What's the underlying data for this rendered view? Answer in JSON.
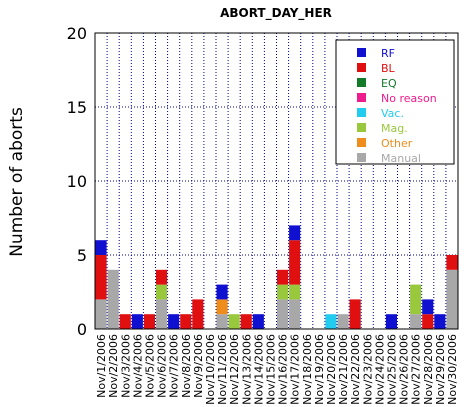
{
  "chart_data": {
    "type": "bar",
    "stacked": true,
    "title": "ABORT_DAY_HER",
    "xlabel": "",
    "ylabel": "Number of aborts",
    "ylim": [
      0,
      20
    ],
    "yticks": [
      "0",
      "5",
      "10",
      "15",
      "20"
    ],
    "grid": true,
    "legend_position": "top-right",
    "categories": [
      "Nov/1/2006",
      "Nov/2/2006",
      "Nov/3/2006",
      "Nov/4/2006",
      "Nov/5/2006",
      "Nov/6/2006",
      "Nov/7/2006",
      "Nov/8/2006",
      "Nov/9/2006",
      "Nov/10/2006",
      "Nov/11/2006",
      "Nov/12/2006",
      "Nov/13/2006",
      "Nov/14/2006",
      "Nov/15/2006",
      "Nov/16/2006",
      "Nov/17/2006",
      "Nov/18/2006",
      "Nov/19/2006",
      "Nov/20/2006",
      "Nov/21/2006",
      "Nov/22/2006",
      "Nov/23/2006",
      "Nov/24/2006",
      "Nov/25/2006",
      "Nov/26/2006",
      "Nov/27/2006",
      "Nov/28/2006",
      "Nov/29/2006",
      "Nov/30/2006"
    ],
    "series": [
      {
        "name": "Manual",
        "color": "#a8a8a8",
        "values": [
          2,
          4,
          0,
          0,
          0,
          2,
          0,
          0,
          0,
          0,
          1,
          0,
          0,
          0,
          0,
          2,
          2,
          0,
          0,
          0,
          1,
          0,
          0,
          0,
          0,
          0,
          1,
          0,
          0,
          4
        ]
      },
      {
        "name": "Other",
        "color": "#ee8c1c",
        "values": [
          0,
          0,
          0,
          0,
          0,
          0,
          0,
          0,
          0,
          0,
          1,
          0,
          0,
          0,
          0,
          0,
          0,
          0,
          0,
          0,
          0,
          0,
          0,
          0,
          0,
          0,
          0,
          0,
          0,
          0
        ]
      },
      {
        "name": "Mag.",
        "color": "#99c83c",
        "values": [
          0,
          0,
          0,
          0,
          0,
          1,
          0,
          0,
          0,
          0,
          0,
          1,
          0,
          0,
          0,
          1,
          1,
          0,
          0,
          0,
          0,
          0,
          0,
          0,
          0,
          0,
          2,
          0,
          0,
          0
        ]
      },
      {
        "name": "Vac.",
        "color": "#22ccee",
        "values": [
          0,
          0,
          0,
          0,
          0,
          0,
          0,
          0,
          0,
          0,
          0,
          0,
          0,
          0,
          0,
          0,
          0,
          0,
          0,
          1,
          0,
          0,
          0,
          0,
          0,
          0,
          0,
          0,
          0,
          0
        ]
      },
      {
        "name": "No reason",
        "color": "#ee1c8c",
        "values": [
          0,
          0,
          0,
          0,
          0,
          0,
          0,
          0,
          0,
          0,
          0,
          0,
          0,
          0,
          0,
          0,
          0,
          0,
          0,
          0,
          0,
          0,
          0,
          0,
          0,
          0,
          0,
          0,
          0,
          0
        ]
      },
      {
        "name": "EQ",
        "color": "#137a2a",
        "values": [
          0,
          0,
          0,
          0,
          0,
          0,
          0,
          0,
          0,
          0,
          0,
          0,
          0,
          0,
          0,
          0,
          0,
          0,
          0,
          0,
          0,
          0,
          0,
          0,
          0,
          0,
          0,
          0,
          0,
          0
        ]
      },
      {
        "name": "BL",
        "color": "#e01010",
        "values": [
          3,
          0,
          1,
          0,
          1,
          1,
          0,
          1,
          2,
          0,
          0,
          0,
          1,
          0,
          0,
          1,
          3,
          0,
          0,
          0,
          0,
          2,
          0,
          0,
          0,
          0,
          0,
          1,
          0,
          1
        ]
      },
      {
        "name": "RF",
        "color": "#1010d0",
        "values": [
          1,
          0,
          0,
          1,
          0,
          0,
          1,
          0,
          0,
          0,
          1,
          0,
          0,
          1,
          0,
          0,
          1,
          0,
          0,
          0,
          0,
          0,
          0,
          0,
          1,
          0,
          0,
          1,
          1,
          0
        ]
      }
    ],
    "legend": [
      {
        "label": "RF",
        "color": "#1010d0"
      },
      {
        "label": "BL",
        "color": "#e01010"
      },
      {
        "label": "EQ",
        "color": "#137a2a"
      },
      {
        "label": "No reason",
        "color": "#ee1c8c"
      },
      {
        "label": "Vac.",
        "color": "#22ccee"
      },
      {
        "label": "Mag.",
        "color": "#99c83c"
      },
      {
        "label": "Other",
        "color": "#ee8c1c"
      },
      {
        "label": "Manual",
        "color": "#a8a8a8"
      }
    ]
  }
}
